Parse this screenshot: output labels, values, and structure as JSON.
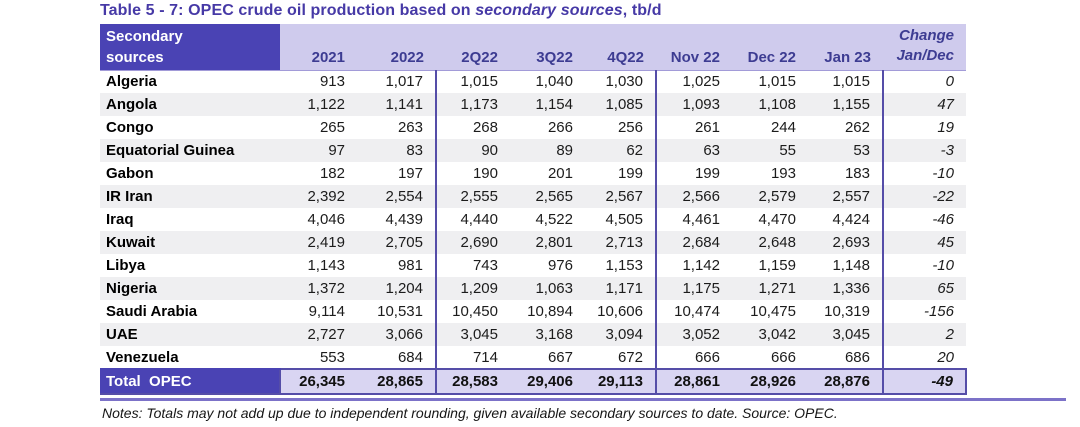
{
  "title": {
    "prefix": "Table 5 - 7: OPEC crude oil production based on ",
    "italic": "secondary sources",
    "suffix": ", tb/d"
  },
  "table": {
    "header": {
      "label_line1": "Secondary",
      "label_line2": "sources",
      "columns": [
        "2021",
        "2022",
        "2Q22",
        "3Q22",
        "4Q22",
        "Nov 22",
        "Dec 22",
        "Jan 23"
      ],
      "change_line1": "Change",
      "change_line2": "Jan/Dec"
    },
    "rows": [
      {
        "label": "Algeria",
        "values": [
          "913",
          "1,017",
          "1,015",
          "1,040",
          "1,030",
          "1,025",
          "1,015",
          "1,015"
        ],
        "change": "0"
      },
      {
        "label": "Angola",
        "values": [
          "1,122",
          "1,141",
          "1,173",
          "1,154",
          "1,085",
          "1,093",
          "1,108",
          "1,155"
        ],
        "change": "47"
      },
      {
        "label": "Congo",
        "values": [
          "265",
          "263",
          "268",
          "266",
          "256",
          "261",
          "244",
          "262"
        ],
        "change": "19"
      },
      {
        "label": "Equatorial Guinea",
        "values": [
          "97",
          "83",
          "90",
          "89",
          "62",
          "63",
          "55",
          "53"
        ],
        "change": "-3"
      },
      {
        "label": "Gabon",
        "values": [
          "182",
          "197",
          "190",
          "201",
          "199",
          "199",
          "193",
          "183"
        ],
        "change": "-10"
      },
      {
        "label": "IR Iran",
        "values": [
          "2,392",
          "2,554",
          "2,555",
          "2,565",
          "2,567",
          "2,566",
          "2,579",
          "2,557"
        ],
        "change": "-22"
      },
      {
        "label": "Iraq",
        "values": [
          "4,046",
          "4,439",
          "4,440",
          "4,522",
          "4,505",
          "4,461",
          "4,470",
          "4,424"
        ],
        "change": "-46"
      },
      {
        "label": "Kuwait",
        "values": [
          "2,419",
          "2,705",
          "2,690",
          "2,801",
          "2,713",
          "2,684",
          "2,648",
          "2,693"
        ],
        "change": "45"
      },
      {
        "label": "Libya",
        "values": [
          "1,143",
          "981",
          "743",
          "976",
          "1,153",
          "1,142",
          "1,159",
          "1,148"
        ],
        "change": "-10"
      },
      {
        "label": "Nigeria",
        "values": [
          "1,372",
          "1,204",
          "1,209",
          "1,063",
          "1,171",
          "1,175",
          "1,271",
          "1,336"
        ],
        "change": "65"
      },
      {
        "label": "Saudi Arabia",
        "values": [
          "9,114",
          "10,531",
          "10,450",
          "10,894",
          "10,606",
          "10,474",
          "10,475",
          "10,319"
        ],
        "change": "-156"
      },
      {
        "label": "UAE",
        "values": [
          "2,727",
          "3,066",
          "3,045",
          "3,168",
          "3,094",
          "3,052",
          "3,042",
          "3,045"
        ],
        "change": "2"
      },
      {
        "label": "Venezuela",
        "values": [
          "553",
          "684",
          "714",
          "667",
          "672",
          "666",
          "666",
          "686"
        ],
        "change": "20"
      }
    ],
    "total": {
      "label": "Total  OPEC",
      "values": [
        "26,345",
        "28,865",
        "28,583",
        "29,406",
        "29,113",
        "28,861",
        "28,926",
        "28,876"
      ],
      "change": "-49"
    }
  },
  "notes": "Notes: Totals may not add up due to independent rounding, given available secondary sources to date. Source: OPEC.",
  "colors": {
    "title_text": "#4639a6",
    "header_bg_dark": "#4a43b4",
    "header_bg_light": "#cfcbed",
    "header_text": "#3d3c92",
    "row_alt_bg": "#efeff1",
    "body_text": "#1c1c1c",
    "section_line": "#554da8",
    "total_values_bg": "#d9d5f2",
    "bottom_rule": "#7c72c8"
  }
}
